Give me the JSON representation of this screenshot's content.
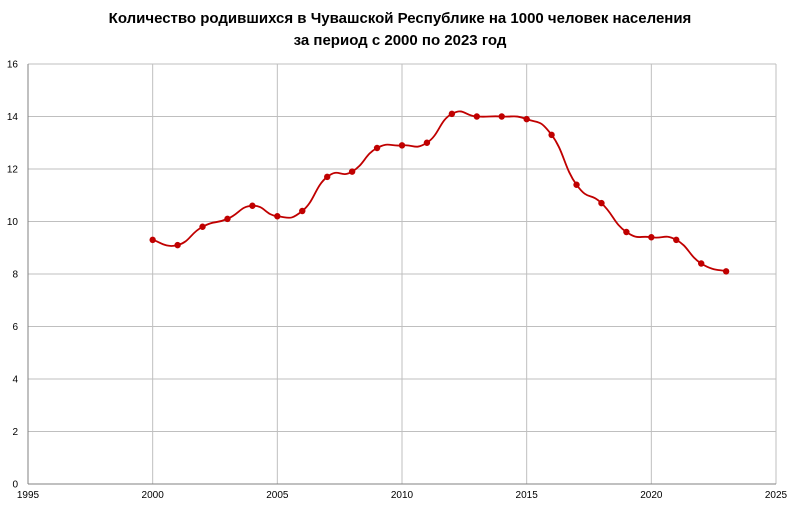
{
  "chart_data": {
    "type": "scatter",
    "title": "Количество родившихся в Чувашской Республике на 1000 человек населения",
    "subtitle": "за период с 2000 по 2023 год",
    "xlabel": "",
    "ylabel": "",
    "xlim": [
      1995,
      2025
    ],
    "ylim": [
      0,
      16
    ],
    "xticks": [
      1995,
      2000,
      2005,
      2010,
      2015,
      2020,
      2025
    ],
    "yticks": [
      0,
      2,
      4,
      6,
      8,
      10,
      12,
      14,
      16
    ],
    "grid": true,
    "line_style": "smooth-with-markers",
    "series": [
      {
        "color": "#c00000",
        "points": [
          {
            "x": 2000,
            "y": 9.3
          },
          {
            "x": 2001,
            "y": 9.1
          },
          {
            "x": 2002,
            "y": 9.8
          },
          {
            "x": 2003,
            "y": 10.1
          },
          {
            "x": 2004,
            "y": 10.6
          },
          {
            "x": 2005,
            "y": 10.2
          },
          {
            "x": 2006,
            "y": 10.4
          },
          {
            "x": 2007,
            "y": 11.7
          },
          {
            "x": 2008,
            "y": 11.9
          },
          {
            "x": 2009,
            "y": 12.8
          },
          {
            "x": 2010,
            "y": 12.9
          },
          {
            "x": 2011,
            "y": 13.0
          },
          {
            "x": 2012,
            "y": 14.1
          },
          {
            "x": 2013,
            "y": 14.0
          },
          {
            "x": 2014,
            "y": 14.0
          },
          {
            "x": 2015,
            "y": 13.9
          },
          {
            "x": 2016,
            "y": 13.3
          },
          {
            "x": 2017,
            "y": 11.4
          },
          {
            "x": 2018,
            "y": 10.7
          },
          {
            "x": 2019,
            "y": 9.6
          },
          {
            "x": 2020,
            "y": 9.4
          },
          {
            "x": 2021,
            "y": 9.3
          },
          {
            "x": 2022,
            "y": 8.4
          },
          {
            "x": 2023,
            "y": 8.1
          }
        ]
      }
    ]
  }
}
